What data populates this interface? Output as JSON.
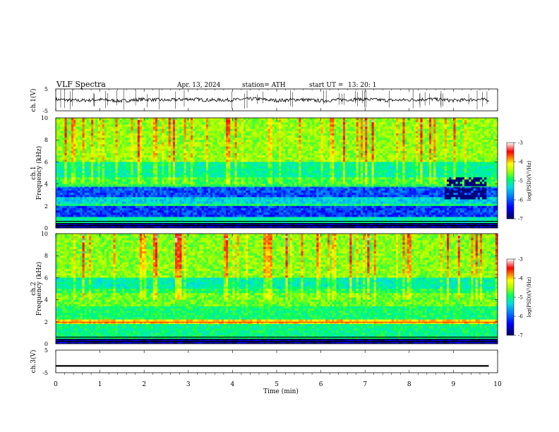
{
  "header": {
    "title": "VLF Spectra",
    "date": "Apr. 13, 2024",
    "station": "station= ATH",
    "start": "start UT =",
    "start_time": "13: 20: 1"
  },
  "colors": {
    "spectrogram_scale": [
      "#000080",
      "#0000ff",
      "#0080ff",
      "#00e0e0",
      "#00ff80",
      "#80ff00",
      "#ffff00",
      "#ff8000",
      "#ff0000",
      "#ffffff"
    ]
  },
  "chart_data": [
    {
      "type": "line",
      "name": "ch1-waveform",
      "ylabel": "ch.1(V)",
      "ylim": [
        -5,
        5
      ],
      "yticks": [
        "5",
        "-5"
      ],
      "xlim": [
        0,
        10
      ],
      "x": [
        0,
        0.5,
        1,
        1.5,
        2,
        2.5,
        3,
        3.5,
        4,
        4.5,
        5,
        5.5,
        6,
        6.5,
        7,
        7.5,
        8,
        8.5,
        9,
        9.5,
        9.8
      ],
      "y": [
        0.2,
        -0.3,
        0.1,
        -0.5,
        0.3,
        -0.2,
        0.4,
        -0.1,
        0.0,
        0.5,
        -0.3,
        0.2,
        -0.4,
        0.1,
        0.3,
        -0.2,
        0.0,
        0.4,
        -0.3,
        0.2,
        0.0
      ]
    },
    {
      "type": "heatmap",
      "name": "ch1-spectrogram",
      "ylabel_line1": "ch.1",
      "ylabel_line2": "Frequency (kHz)",
      "ylim": [
        0,
        10
      ],
      "yticks": [
        "10",
        "8",
        "6",
        "4",
        "2",
        "0"
      ],
      "xlim": [
        0,
        10
      ],
      "colorbar_label": "log(PSD)(V²/Hz)",
      "colorbar_range": [
        -7,
        -3
      ],
      "colorbar_ticks": [
        "-3",
        "-4",
        "-5",
        "-6",
        "-7"
      ]
    },
    {
      "type": "heatmap",
      "name": "ch2-spectrogram",
      "ylabel_line1": "ch.2",
      "ylabel_line2": "Frequency (kHz)",
      "ylim": [
        0,
        10
      ],
      "yticks": [
        "10",
        "8",
        "6",
        "4",
        "2",
        "0"
      ],
      "xlim": [
        0,
        10
      ],
      "colorbar_label": "log(PSD)(V²/Hz)",
      "colorbar_range": [
        -7,
        -3
      ],
      "colorbar_ticks": [
        "-3",
        "-4",
        "-5",
        "-6",
        "-7"
      ]
    },
    {
      "type": "line",
      "name": "ch3-waveform",
      "ylabel": "ch.3(V)",
      "ylim": [
        -5,
        5
      ],
      "yticks": [
        "5",
        "-5"
      ],
      "xlim": [
        0,
        10
      ],
      "x": [
        0,
        9.8
      ],
      "y": [
        -2,
        -2
      ]
    }
  ],
  "xaxis": {
    "label": "Time (min)",
    "ticks": [
      "0",
      "1",
      "2",
      "3",
      "4",
      "5",
      "6",
      "7",
      "8",
      "9",
      "10"
    ]
  }
}
